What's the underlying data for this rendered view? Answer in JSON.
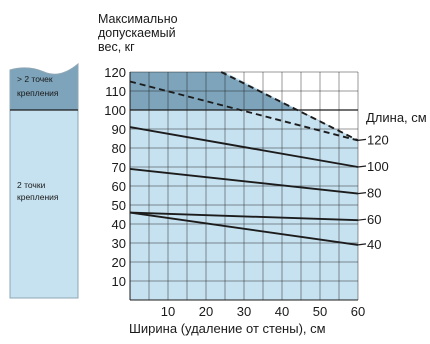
{
  "chart_data": {
    "type": "line",
    "ylabel_lines": [
      "Максимально",
      "допускаемый",
      "вес, кг"
    ],
    "xlabel": "Ширина (удаление от стены), см",
    "legend_title": "Длина, см",
    "xlim": [
      0,
      60
    ],
    "ylim": [
      0,
      120
    ],
    "x_ticks": [
      10,
      20,
      30,
      40,
      50,
      60
    ],
    "y_ticks": [
      10,
      20,
      30,
      40,
      50,
      60,
      70,
      80,
      90,
      100,
      110,
      120
    ],
    "grid": true,
    "series": [
      {
        "name": "120",
        "style": "dashed",
        "points": [
          [
            0,
            115
          ],
          [
            60,
            84
          ]
        ]
      },
      {
        "name": "100",
        "style": "solid",
        "points": [
          [
            0,
            91
          ],
          [
            60,
            70
          ]
        ]
      },
      {
        "name": "80",
        "style": "solid",
        "points": [
          [
            0,
            69
          ],
          [
            60,
            56
          ]
        ]
      },
      {
        "name": "60",
        "style": "solid",
        "points": [
          [
            0,
            46
          ],
          [
            60,
            42
          ]
        ]
      },
      {
        "name": "40",
        "style": "solid",
        "points": [
          [
            0,
            46
          ],
          [
            60,
            29
          ]
        ]
      }
    ],
    "dark_region_top": [
      [
        0,
        123
      ],
      [
        24,
        120
      ],
      [
        60,
        84
      ]
    ],
    "zone_boundary_y": 100,
    "zones": [
      {
        "label_lines": [
          "> 2 точек",
          "крепления"
        ],
        "range": [
          100,
          120
        ]
      },
      {
        "label_lines": [
          "2 точки",
          "крепления"
        ],
        "range": [
          0,
          100
        ]
      }
    ],
    "colors": {
      "light_fill": "#c6e1ef",
      "dark_fill": "#7da4ba",
      "line": "#1c1c1c",
      "grid": "#1c1c1c",
      "panel_border": "#8fa7b6"
    }
  }
}
